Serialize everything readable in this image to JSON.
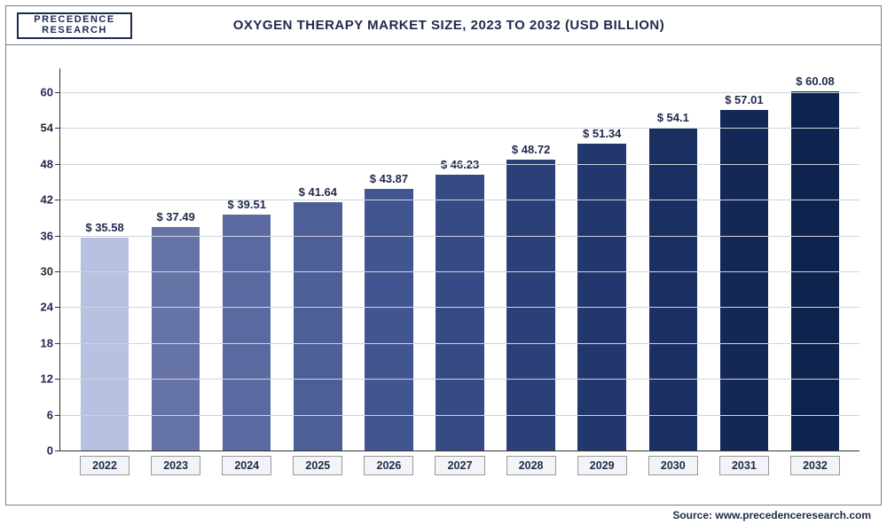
{
  "logo": {
    "line1": "PRECEDENCE",
    "line2": "RESEARCH"
  },
  "chart": {
    "type": "bar",
    "title": "OXYGEN THERAPY MARKET SIZE, 2023 TO 2032 (USD BILLION)",
    "title_fontsize": 15,
    "source_label": "Source: www.precedenceresearch.com",
    "background_color": "#ffffff",
    "grid_color": "#cfd3db",
    "axis_color": "#333333",
    "text_color": "#1e2a4a",
    "ylim": [
      0,
      64
    ],
    "yticks": [
      0,
      6,
      12,
      18,
      24,
      30,
      36,
      42,
      48,
      54,
      60
    ],
    "ytick_labels": [
      "0",
      "6",
      "12",
      "18",
      "24",
      "30",
      "36",
      "42",
      "48",
      "54",
      "60"
    ],
    "label_fontsize": 13,
    "value_prefix": "$ ",
    "bar_width": 0.68,
    "categories": [
      "2022",
      "2023",
      "2024",
      "2025",
      "2026",
      "2027",
      "2028",
      "2029",
      "2030",
      "2031",
      "2032"
    ],
    "values": [
      35.58,
      37.49,
      39.51,
      41.64,
      43.87,
      46.23,
      48.72,
      51.34,
      54.1,
      57.01,
      60.08
    ],
    "value_labels": [
      "$ 35.58",
      "$ 37.49",
      "$ 39.51",
      "$ 41.64",
      "$ 43.87",
      "$ 46.23",
      "$ 48.72",
      "$ 51.34",
      "$ 54.1",
      "$ 57.01",
      "$ 60.08"
    ],
    "bar_colors": [
      "#b7c2e1",
      "#6673a6",
      "#5a6aa0",
      "#4d5f97",
      "#415590",
      "#364b85",
      "#2b4078",
      "#22376d",
      "#1a2f62",
      "#142858",
      "#0f234f"
    ]
  }
}
